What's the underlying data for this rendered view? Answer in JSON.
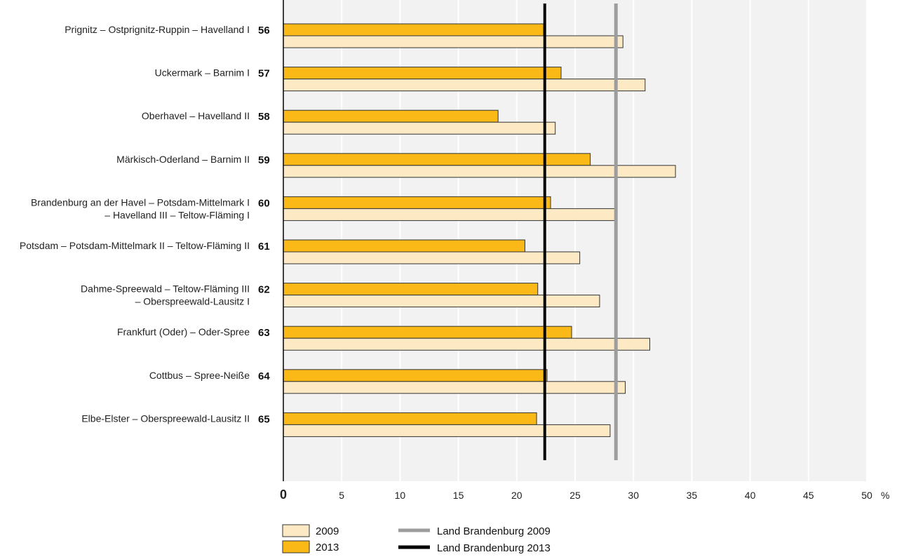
{
  "chart_data": {
    "type": "bar",
    "orientation": "horizontal",
    "unit": "%",
    "xlim": [
      0,
      50
    ],
    "x_ticks": [
      "0",
      "5",
      "10",
      "15",
      "20",
      "25",
      "30",
      "35",
      "40",
      "45",
      "50"
    ],
    "grid": "vertical",
    "categories": [
      {
        "number": "56",
        "lines": [
          "Prignitz – Ostprignitz-Ruppin – Havelland I"
        ]
      },
      {
        "number": "57",
        "lines": [
          "Uckermark – Barnim I"
        ]
      },
      {
        "number": "58",
        "lines": [
          "Oberhavel – Havelland II"
        ]
      },
      {
        "number": "59",
        "lines": [
          "Märkisch-Oderland – Barnim II"
        ]
      },
      {
        "number": "60",
        "lines": [
          "Brandenburg an der Havel – Potsdam-Mittelmark I",
          "– Havelland III – Teltow-Fläming I"
        ]
      },
      {
        "number": "61",
        "lines": [
          "Potsdam – Potsdam-Mittelmark II – Teltow-Fläming II"
        ]
      },
      {
        "number": "62",
        "lines": [
          "Dahme-Spreewald – Teltow-Fläming III",
          "– Oberspreewald-Lausitz I"
        ]
      },
      {
        "number": "63",
        "lines": [
          "Frankfurt (Oder) – Oder-Spree"
        ]
      },
      {
        "number": "64",
        "lines": [
          "Cottbus – Spree-Neiße"
        ]
      },
      {
        "number": "65",
        "lines": [
          "Elbe-Elster – Oberspreewald-Lausitz II"
        ]
      }
    ],
    "series": [
      {
        "name": "2013",
        "color": "#fbb917",
        "values": [
          22.3,
          23.8,
          18.4,
          26.3,
          22.9,
          20.7,
          21.8,
          24.7,
          22.6,
          21.7
        ]
      },
      {
        "name": "2009",
        "color": "#fde9c4",
        "values": [
          29.1,
          31.0,
          23.3,
          33.6,
          28.4,
          25.4,
          27.1,
          31.4,
          29.3,
          28.0
        ]
      }
    ],
    "reference_lines": [
      {
        "name": "Land Brandenburg 2009",
        "value": 28.5,
        "color": "#9d9d9d"
      },
      {
        "name": "Land Brandenburg 2013",
        "value": 22.4,
        "color": "#000000"
      }
    ],
    "legend": {
      "placement": "bottom-left",
      "items": [
        {
          "label": "2009",
          "kind": "box",
          "color": "#fde9c4"
        },
        {
          "label": "2013",
          "kind": "box",
          "color": "#fbb917"
        },
        {
          "label": "Land Brandenburg 2009",
          "kind": "line",
          "color": "#9d9d9d"
        },
        {
          "label": "Land Brandenburg 2013",
          "kind": "line",
          "color": "#000000"
        }
      ]
    },
    "colors": {
      "plot_background": "#f2f2f2",
      "gridline": "#ffffff",
      "bar_outline": "#333333"
    }
  }
}
